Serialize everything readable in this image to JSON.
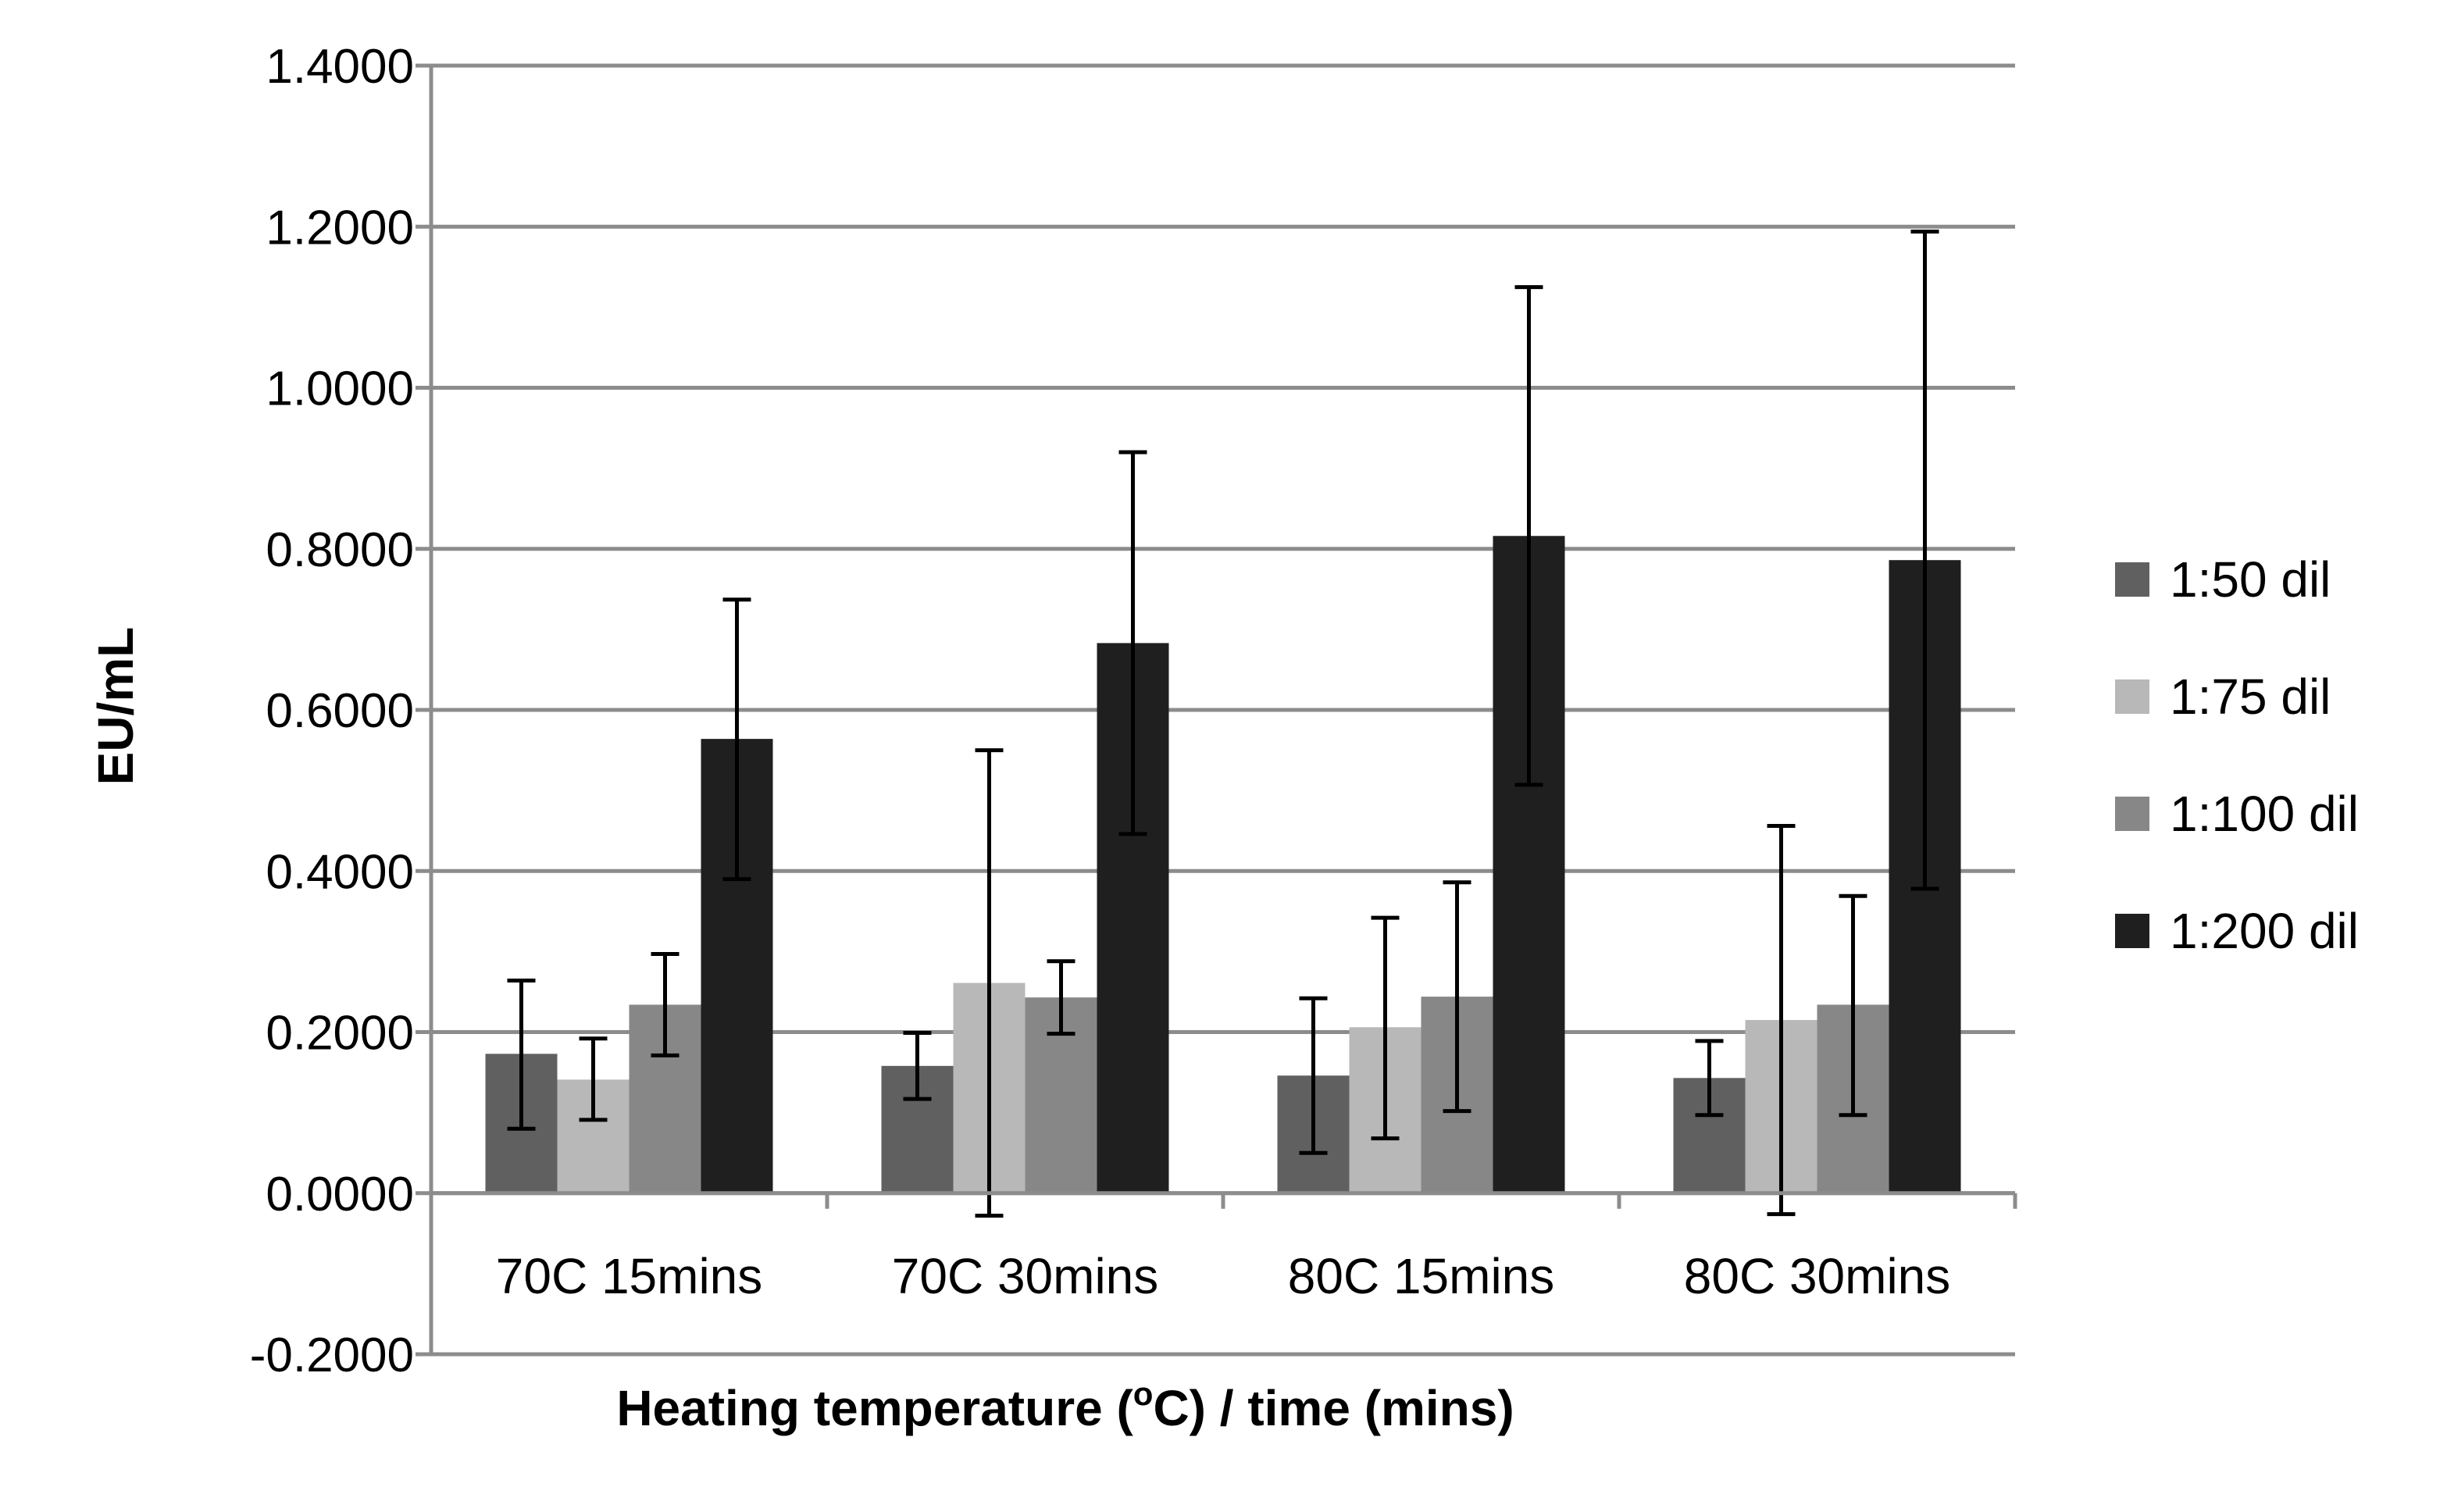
{
  "chart_data": {
    "type": "bar",
    "title": "",
    "xlabel": "Heating temperature (",
    "xlabel_sup": "o",
    "xlabel_end": "C) / time (mins)",
    "ylabel": "EU/mL",
    "ylim": [
      -0.2,
      1.4
    ],
    "ytick_step": 0.2,
    "ytick_labels": [
      "-0.2000",
      "0.0000",
      "0.2000",
      "0.4000",
      "0.6000",
      "0.8000",
      "1.0000",
      "1.2000",
      "1.4000"
    ],
    "grid": true,
    "legend_position": "right",
    "categories": [
      "70C 15mins",
      "70C 30mins",
      "80C 15mins",
      "80C 30mins"
    ],
    "series": [
      {
        "name": "1:50 dil",
        "color": "#606060",
        "values": [
          0.173,
          0.158,
          0.146,
          0.143
        ],
        "err_low": [
          0.08,
          0.117,
          0.05,
          0.097
        ],
        "err_high": [
          0.264,
          0.199,
          0.242,
          0.189
        ]
      },
      {
        "name": "1:75 dil",
        "color": "#b8b8b8",
        "values": [
          0.141,
          0.261,
          0.206,
          0.215
        ],
        "err_low": [
          0.091,
          -0.028,
          0.068,
          -0.026
        ],
        "err_high": [
          0.192,
          0.55,
          0.342,
          0.456
        ]
      },
      {
        "name": "1:100 dil",
        "color": "#878787",
        "values": [
          0.234,
          0.243,
          0.244,
          0.234
        ],
        "err_low": [
          0.171,
          0.198,
          0.102,
          0.097
        ],
        "err_high": [
          0.297,
          0.288,
          0.386,
          0.369
        ]
      },
      {
        "name": "1:200 dil",
        "color": "#1f1f1f",
        "values": [
          0.564,
          0.683,
          0.816,
          0.786
        ],
        "err_low": [
          0.39,
          0.446,
          0.507,
          0.378
        ],
        "err_high": [
          0.737,
          0.92,
          1.125,
          1.194
        ]
      }
    ]
  }
}
